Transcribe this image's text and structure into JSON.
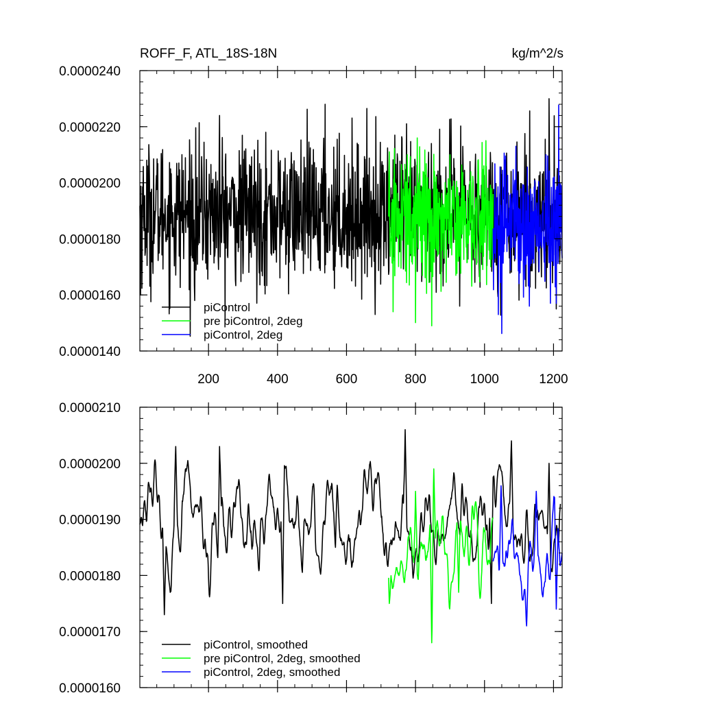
{
  "chart_data": [
    {
      "type": "line",
      "title": "ROFF_F, ATL_18S-18N",
      "units": "kg/m^2/s",
      "xlabel": "",
      "ylabel": "",
      "xlim": [
        1,
        1225
      ],
      "ylim": [
        1.4e-05,
        2.4e-05
      ],
      "x_ticks": [
        200,
        400,
        600,
        800,
        1000,
        1200
      ],
      "x_tick_labels": [
        "200",
        "400",
        "600",
        "800",
        "1000",
        "1200"
      ],
      "y_ticks": [
        1.4e-05,
        1.6e-05,
        1.8e-05,
        2e-05,
        2.2e-05,
        2.4e-05
      ],
      "y_tick_labels": [
        "0.0000140",
        "0.0000160",
        "0.0000180",
        "0.0000200",
        "0.0000220",
        "0.0000240"
      ],
      "legend_position": "bottom-left",
      "series": [
        {
          "name": "piControl",
          "color": "#000000",
          "x_start": 1,
          "x_end": 1220,
          "mean": 1.89e-05,
          "std": 1.25e-06,
          "peaks": [
            {
              "x": 232,
              "y": 2.24e-05
            },
            {
              "x": 538,
              "y": 2.28e-05
            },
            {
              "x": 1187,
              "y": 2.3e-05
            },
            {
              "x": 846,
              "y": 2.14e-05
            },
            {
              "x": 740,
              "y": 2.17e-05
            }
          ],
          "troughs": [
            {
              "x": 3,
              "y": 1.6e-05
            },
            {
              "x": 160,
              "y": 1.58e-05
            },
            {
              "x": 928,
              "y": 1.56e-05
            },
            {
              "x": 1208,
              "y": 1.55e-05
            }
          ]
        },
        {
          "name": "pre piControl, 2deg",
          "color": "#00ff00",
          "x_start": 722,
          "x_end": 1025,
          "mean": 1.88e-05,
          "std": 1.15e-06,
          "peaks": [
            {
              "x": 776,
              "y": 2.1e-05
            },
            {
              "x": 805,
              "y": 2.16e-05
            },
            {
              "x": 900,
              "y": 2.1e-05
            }
          ],
          "troughs": [
            {
              "x": 735,
              "y": 1.54e-05
            },
            {
              "x": 847,
              "y": 1.49e-05
            }
          ]
        },
        {
          "name": "piControl, 2deg",
          "color": "#0000ff",
          "x_start": 1025,
          "x_end": 1225,
          "mean": 1.86e-05,
          "std": 1.15e-06,
          "peaks": [
            {
              "x": 1130,
              "y": 2.09e-05
            },
            {
              "x": 1178,
              "y": 2.1e-05
            }
          ],
          "troughs": [
            {
              "x": 1040,
              "y": 1.53e-05
            },
            {
              "x": 1130,
              "y": 1.56e-05
            },
            {
              "x": 1208,
              "y": 1.57e-05
            }
          ]
        }
      ]
    },
    {
      "type": "line",
      "title": "",
      "xlabel": "",
      "ylabel": "",
      "xlim": [
        1,
        1225
      ],
      "ylim": [
        1.6e-05,
        2.1e-05
      ],
      "x_ticks": [
        200,
        400,
        600,
        800,
        1000,
        1200
      ],
      "x_tick_labels": [],
      "y_ticks": [
        1.6e-05,
        1.7e-05,
        1.8e-05,
        1.9e-05,
        2e-05,
        2.1e-05
      ],
      "y_tick_labels": [
        "0.0000160",
        "0.0000170",
        "0.0000180",
        "0.0000190",
        "0.0000200",
        "0.0000210"
      ],
      "legend_position": "bottom-left",
      "series": [
        {
          "name": "piControl, smoothed",
          "color": "#000000",
          "x_start": 1,
          "x_end": 1220,
          "mean": 1.89e-05,
          "std": 5e-07,
          "peaks": [
            {
              "x": 105,
              "y": 2.03e-05
            },
            {
              "x": 232,
              "y": 2.03e-05
            },
            {
              "x": 770,
              "y": 2.06e-05
            },
            {
              "x": 1078,
              "y": 2.04e-05
            },
            {
              "x": 1187,
              "y": 2e-05
            }
          ],
          "troughs": [
            {
              "x": 72,
              "y": 1.73e-05
            },
            {
              "x": 415,
              "y": 1.75e-05
            },
            {
              "x": 568,
              "y": 1.85e-05
            },
            {
              "x": 1020,
              "y": 1.75e-05
            }
          ]
        },
        {
          "name": "pre piControl, 2deg, smoothed",
          "color": "#00ff00",
          "x_start": 722,
          "x_end": 1025,
          "mean": 1.85e-05,
          "std": 5e-07,
          "peaks": [
            {
              "x": 853,
              "y": 1.99e-05
            },
            {
              "x": 800,
              "y": 1.95e-05
            }
          ],
          "troughs": [
            {
              "x": 724,
              "y": 1.75e-05
            },
            {
              "x": 847,
              "y": 1.68e-05
            },
            {
              "x": 925,
              "y": 1.77e-05
            }
          ]
        },
        {
          "name": "piControl, 2deg, smoothed",
          "color": "#0000ff",
          "x_start": 1025,
          "x_end": 1225,
          "mean": 1.85e-05,
          "std": 5e-07,
          "peaks": [
            {
              "x": 1048,
              "y": 1.96e-05
            },
            {
              "x": 1150,
              "y": 1.95e-05
            }
          ],
          "troughs": [
            {
              "x": 1122,
              "y": 1.71e-05
            },
            {
              "x": 1208,
              "y": 1.74e-05
            }
          ]
        }
      ]
    }
  ]
}
